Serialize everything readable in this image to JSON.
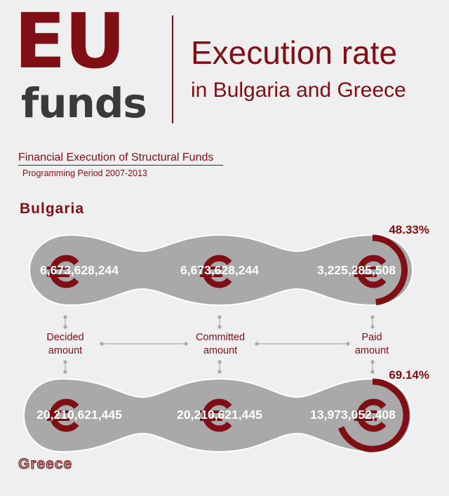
{
  "header": {
    "eu": "EU",
    "funds": "funds",
    "title_line1": "Execution rate",
    "title_line2": "in Bulgaria and Greece"
  },
  "subtitle": {
    "line1": "Financial Execution of Structural Funds",
    "line2": "Programming Period 2007-2013"
  },
  "colors": {
    "accent": "#7f0f14",
    "pill": "#a9a9a9",
    "background": "#efefef",
    "dark_text": "#3a3a3a"
  },
  "labels": {
    "decided_line1": "Decided",
    "decided_line2": "amount",
    "committed_line1": "Committed",
    "committed_line2": "amount",
    "paid_line1": "Paid",
    "paid_line2": "amount"
  },
  "bulgaria": {
    "name": "Bulgaria",
    "decided": "6,673,628,244",
    "committed": "6,673,628,244",
    "paid": "3,225,285,508",
    "rate_label": "48.33%",
    "rate": 48.33
  },
  "greece": {
    "name": "Greece",
    "decided": "20,210,621,445",
    "committed": "20,210,621,445",
    "paid": "13,973,052,408",
    "rate_label": "69.14%",
    "rate": 69.14
  }
}
